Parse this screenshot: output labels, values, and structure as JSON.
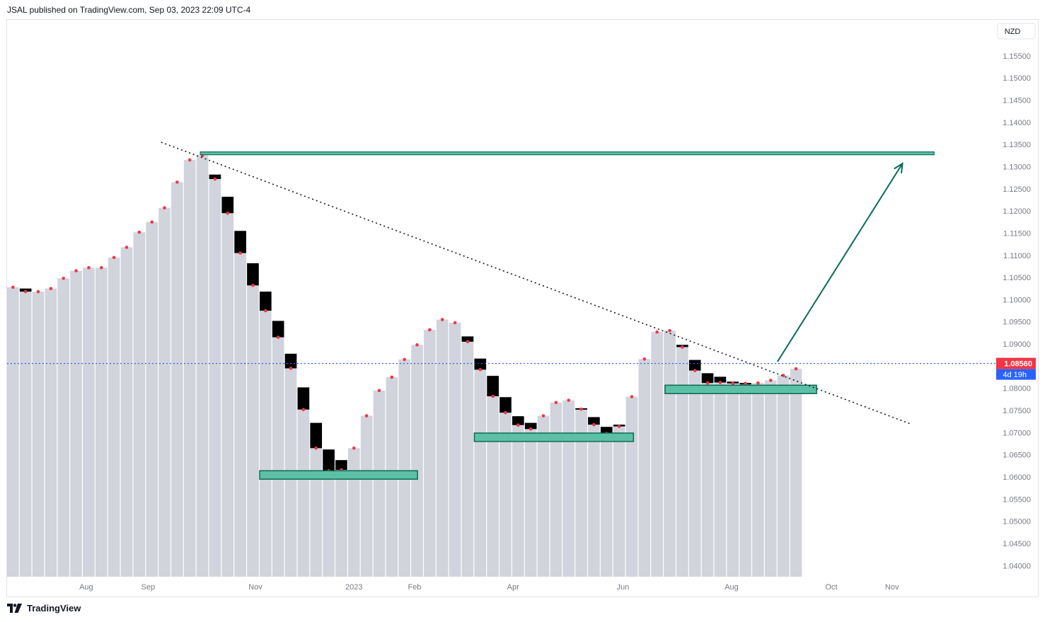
{
  "header": {
    "text": "JSAL published on TradingView.com, Sep 03, 2023 22:09 UTC-4"
  },
  "footer": {
    "brand": "TradingView",
    "logo_icon": "tradingview-logo-icon"
  },
  "colors": {
    "bar_fill": "#d1d4dc",
    "decline_fill": "#000000",
    "dot": "#f23645",
    "zone_fill": "#5dbfa6",
    "zone_border": "#0b6b56",
    "level_line": "#0b6b56",
    "arrow": "#0b6b56",
    "trendline": "#131722",
    "price_line": "#2962ff",
    "price_badge": "#f23645",
    "countdown_badge": "#2962ff",
    "axis_text": "#787b86"
  },
  "chart_data": {
    "type": "bar",
    "title": "",
    "currency_label": "NZD",
    "current_price": "1.08560",
    "countdown": "4d 19h",
    "x_tick_labels": [
      "Aug",
      "Sep",
      "Nov",
      "2023",
      "Feb",
      "Apr",
      "Jun",
      "Aug",
      "Oct",
      "Nov"
    ],
    "y_tick_labels": [
      "1.15500",
      "1.15000",
      "1.14500",
      "1.14000",
      "1.13500",
      "1.13000",
      "1.12500",
      "1.12000",
      "1.11500",
      "1.11000",
      "1.10500",
      "1.10000",
      "1.09500",
      "1.09000",
      "1.08000",
      "1.07500",
      "1.07000",
      "1.06500",
      "1.06000",
      "1.05500",
      "1.05000",
      "1.04500",
      "1.04000"
    ],
    "ylim": [
      1.0375,
      1.1588
    ],
    "x_ticks": [
      {
        "label": "Aug",
        "bar": 5.8
      },
      {
        "label": "Sep",
        "bar": 10.7
      },
      {
        "label": "Nov",
        "bar": 19.2
      },
      {
        "label": "2023",
        "bar": 27.0
      },
      {
        "label": "Feb",
        "bar": 31.8
      },
      {
        "label": "Apr",
        "bar": 39.6
      },
      {
        "label": "Jun",
        "bar": 48.3
      },
      {
        "label": "Aug",
        "bar": 56.9
      },
      {
        "label": "Oct",
        "bar": 64.8
      },
      {
        "label": "Nov",
        "bar": 69.6
      }
    ],
    "series": [
      {
        "values": [
          1.1028,
          1.1018,
          1.1018,
          1.1025,
          1.1048,
          1.1065,
          1.1072,
          1.1072,
          1.1095,
          1.1118,
          1.1152,
          1.1175,
          1.1207,
          1.1265,
          1.1315,
          1.1325,
          1.1272,
          1.1195,
          1.1105,
          1.1032,
          1.0975,
          1.0915,
          1.0845,
          1.0752,
          1.0665,
          1.0614,
          1.0616,
          1.0665,
          1.0738,
          1.0795,
          1.0825,
          1.0865,
          1.0898,
          1.0932,
          1.0955,
          1.0948,
          1.0905,
          1.0842,
          1.0782,
          1.0745,
          1.0717,
          1.0708,
          1.0738,
          1.0768,
          1.0773,
          1.0753,
          1.0718,
          1.0698,
          1.0714,
          1.0781,
          1.0866,
          1.0927,
          1.093,
          1.0893,
          1.084,
          1.0812,
          1.0813,
          1.0811,
          1.0811,
          1.0812,
          1.0818,
          1.0829,
          1.0844
        ],
        "declines": [
          {
            "bar": 1,
            "from": 1.1025
          },
          {
            "bar": 16,
            "from": 1.1282
          },
          {
            "bar": 17,
            "from": 1.1232
          },
          {
            "bar": 18,
            "from": 1.1155
          },
          {
            "bar": 19,
            "from": 1.1082
          },
          {
            "bar": 20,
            "from": 1.1018
          },
          {
            "bar": 21,
            "from": 1.0952
          },
          {
            "bar": 22,
            "from": 1.0878
          },
          {
            "bar": 23,
            "from": 1.0802
          },
          {
            "bar": 24,
            "from": 1.0722
          },
          {
            "bar": 25,
            "from": 1.0662
          },
          {
            "bar": 26,
            "from": 1.0638
          },
          {
            "bar": 36,
            "from": 1.0917
          },
          {
            "bar": 37,
            "from": 1.0867
          },
          {
            "bar": 38,
            "from": 1.0828
          },
          {
            "bar": 39,
            "from": 1.078
          },
          {
            "bar": 40,
            "from": 1.0737
          },
          {
            "bar": 41,
            "from": 1.0722
          },
          {
            "bar": 45,
            "from": 1.0755
          },
          {
            "bar": 46,
            "from": 1.0735
          },
          {
            "bar": 47,
            "from": 1.0713
          },
          {
            "bar": 48,
            "from": 1.0718
          },
          {
            "bar": 53,
            "from": 1.0898
          },
          {
            "bar": 54,
            "from": 1.0864
          },
          {
            "bar": 55,
            "from": 1.0834
          },
          {
            "bar": 56,
            "from": 1.0826
          },
          {
            "bar": 57,
            "from": 1.0815
          },
          {
            "bar": 58,
            "from": 1.0812
          }
        ]
      }
    ],
    "annotations": {
      "zones": [
        {
          "bar_start": 20.0,
          "bar_end": 32.5,
          "top": 1.0614,
          "bottom": 1.0595
        },
        {
          "bar_start": 37.0,
          "bar_end": 49.6,
          "top": 1.0699,
          "bottom": 1.068
        },
        {
          "bar_start": 52.1,
          "bar_end": 64.1,
          "top": 1.0807,
          "bottom": 1.0788
        }
      ],
      "resistance_line": {
        "bar_start": 15.3,
        "bar_end": 73.4,
        "price": 1.133
      },
      "target_arrow": {
        "bar_start": 61.0,
        "price_start": 1.086,
        "bar_end": 70.9,
        "price_end": 1.1307
      },
      "trendline": {
        "bar_start": 12.2,
        "price_start": 1.1355,
        "bar_end": 71.6,
        "price_end": 1.0719
      }
    }
  }
}
